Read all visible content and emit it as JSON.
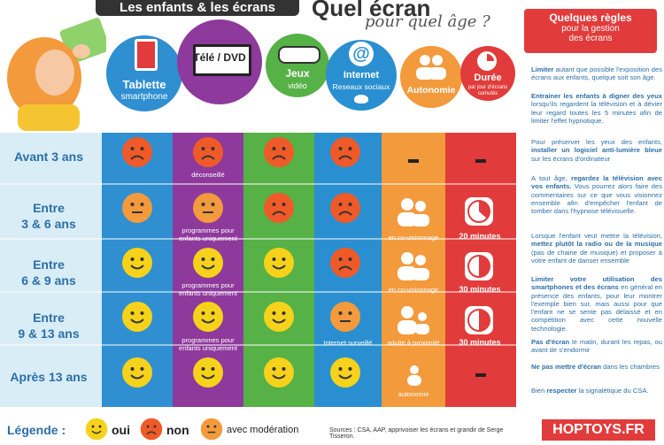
{
  "header": {
    "banner": "Les enfants & les écrans",
    "title": "Quel écran",
    "subtitle": "pour quel âge ?"
  },
  "columns": [
    {
      "label": "Tablette",
      "sub": "smartphone",
      "color": "#e23b3b",
      "icon": "tablet-icon"
    },
    {
      "label": "Télé / DVD",
      "sub": "",
      "color": "#8e3a9c",
      "icon": "tv-icon"
    },
    {
      "label": "Jeux",
      "sub": "vidéo",
      "color": "#56b147",
      "icon": "gamepad-icon"
    },
    {
      "label": "Internet",
      "sub": "Reseaux sociaux",
      "color": "#2a8fd0",
      "icon": "at-icon"
    },
    {
      "label": "Autonomie",
      "sub": "",
      "color": "#f39a3c",
      "icon": "people-icon"
    },
    {
      "label": "Durée",
      "sub": "par jour d'écrans cumulés",
      "color": "#e23b3b",
      "icon": "clock-icon"
    }
  ],
  "rows": [
    {
      "label_line1": "Avant 3 ans",
      "label_line2": ""
    },
    {
      "label_line1": "Entre",
      "label_line2": "3 & 6 ans"
    },
    {
      "label_line1": "Entre",
      "label_line2": "6 & 9 ans"
    },
    {
      "label_line1": "Entre",
      "label_line2": "9 & 13 ans"
    },
    {
      "label_line1": "Après 13 ans",
      "label_line2": ""
    }
  ],
  "cells": {
    "r0": {
      "tablet": "non",
      "tv": "non",
      "tv_caption": "déconseillé",
      "games": "non",
      "internet": "non",
      "autonomy": "-",
      "duration": "-"
    },
    "r1": {
      "tablet": "moderation",
      "tv": "moderation",
      "tv_caption": "programmes pour enfants uniquement",
      "games": "non",
      "internet": "non",
      "autonomy_caption": "en co-visionnage",
      "duration": "20 minutes"
    },
    "r2": {
      "tablet": "oui",
      "tv": "oui",
      "tv_caption": "programmes pour enfants uniquement",
      "games": "oui",
      "internet": "non",
      "autonomy_caption": "en co-visionnage",
      "duration": "30 minutes"
    },
    "r3": {
      "tablet": "oui",
      "tv": "oui",
      "tv_caption": "programmes pour enfants uniquement",
      "games": "oui",
      "internet": "moderation",
      "internet_caption": "Internet surveillé",
      "autonomy_caption": "adulte à proximité",
      "duration": "30 minutes"
    },
    "r4": {
      "tablet": "oui",
      "tv": "oui",
      "games": "oui",
      "internet": "oui",
      "autonomy_caption": "autonomie",
      "duration": "-"
    }
  },
  "legend": {
    "title": "Légende :",
    "oui": "oui",
    "non": "non",
    "moderation": "avec modération"
  },
  "sources": "Sources : CSA, AAP, apprivoiser les écrans et grandir de Serge Tisseron.",
  "brand": "HOPTOYS.FR",
  "rules": {
    "heading": "Quelques règles",
    "heading2": "pour la gestion",
    "heading3": "des écrans",
    "p1b": "Limiter",
    "p1": " autant que possible l'exposition des écrans aux enfants, quelque soit son âge.",
    "p2b": "Entrainer les enfants à digner des yeux",
    "p2": " lorsqu'ils regardent la télévision et à dévier leur regard toutes les 5 minutes afin de limiter l'effet hypnotique.",
    "p3a": "Pour préserver les yeux des enfants, ",
    "p3b": "installer un logiciel anti-lumière bleue",
    "p3c": " sur les écrans d'ordinateur",
    "p4a": "A tout âge, ",
    "p4b": "regardez la télévision avec vos enfants.",
    "p4c": " Vous pourrez alors faire des commentaires sur ce que vous visionnez ensemble afin d'empêcher l'enfant de tomber dans l'hypnose télévisuelle.",
    "p5a": "Lorsque l'enfant veut mettre la télévision, ",
    "p5b": "mettez plutôt la radio ou de la musique",
    "p5c": " (pas de chaine de musique) et proposer à votre enfant de danser ensemble",
    "p6b": "Limiter votre utilisation des smartphones et des écrans",
    "p6": " en général en présence des enfants, pour leur montrer l'exemple bien sur, mais aussi pour que l'enfant ne se sente pas délaissé et en compétition avec cette nouvelle technologie.",
    "p7b": "Pas d'écran",
    "p7": " le matin, durant les repas, ou avant de s'endormir",
    "p8b": "Ne pas mettre d'écran",
    "p8": " dans les chambres",
    "p9a": "Bien ",
    "p9b": "respecter",
    "p9c": " la signalétique du CSA."
  },
  "colors": {
    "oui": "#f7d21a",
    "non": "#f05a28",
    "moderation": "#f39a3c",
    "row_label": "#2c6fa6"
  }
}
